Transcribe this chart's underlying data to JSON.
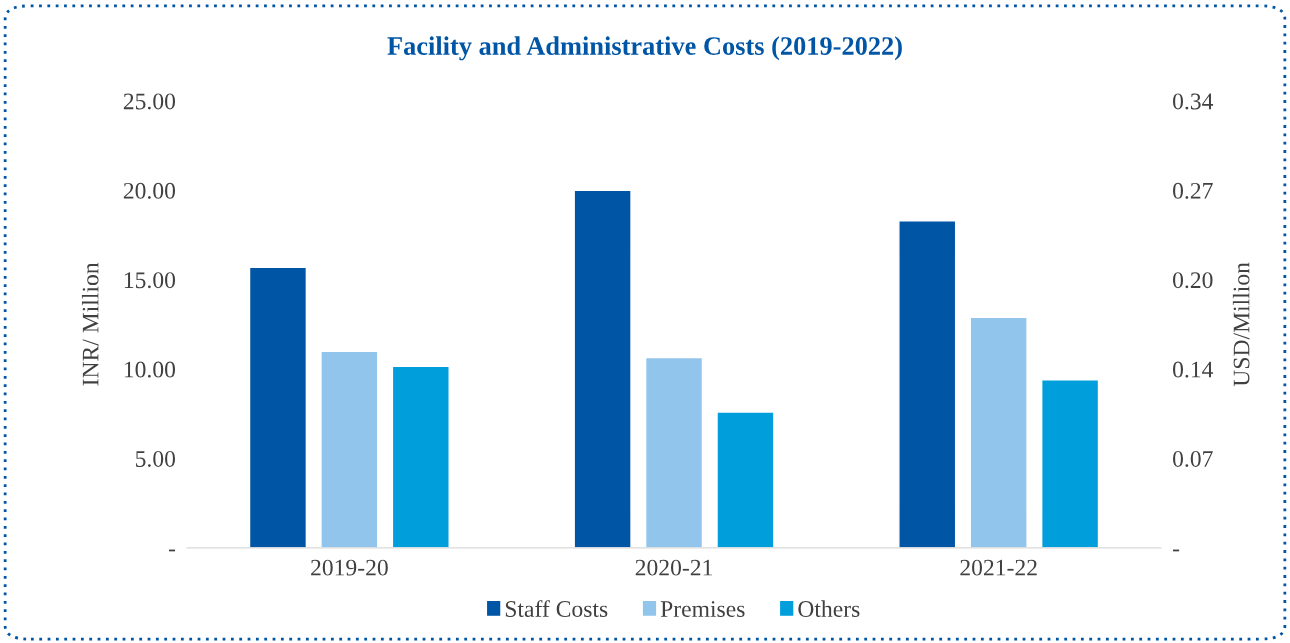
{
  "chart_data": {
    "type": "bar",
    "title": "Facility and Administrative Costs (2019-2022)",
    "ylabel": "INR/ Million",
    "y2label": "USD/Million",
    "categories": [
      "2019-20",
      "2020-21",
      "2021-22"
    ],
    "series": [
      {
        "name": "Staff Costs",
        "color": "#0055a5",
        "values": [
          15.7,
          20.0,
          18.3
        ]
      },
      {
        "name": "Premises",
        "color": "#92c5eb",
        "values": [
          11.0,
          10.65,
          12.9
        ]
      },
      {
        "name": "Others",
        "color": "#009fdc",
        "values": [
          10.15,
          7.6,
          9.4
        ]
      }
    ],
    "ylim": [
      0,
      25
    ],
    "yticks": [
      {
        "value": 0,
        "label": "-"
      },
      {
        "value": 5,
        "label": "5.00"
      },
      {
        "value": 10,
        "label": "10.00"
      },
      {
        "value": 15,
        "label": "15.00"
      },
      {
        "value": 20,
        "label": "20.00"
      },
      {
        "value": 25,
        "label": "25.00"
      }
    ],
    "y2lim": [
      0,
      0.34
    ],
    "y2ticks": [
      {
        "value": 0,
        "label": "-"
      },
      {
        "value": 0.068,
        "label": "0.07"
      },
      {
        "value": 0.136,
        "label": "0.14"
      },
      {
        "value": 0.204,
        "label": "0.20"
      },
      {
        "value": 0.272,
        "label": "0.27"
      },
      {
        "value": 0.34,
        "label": "0.34"
      }
    ],
    "legend": "bottom",
    "grid": false
  }
}
